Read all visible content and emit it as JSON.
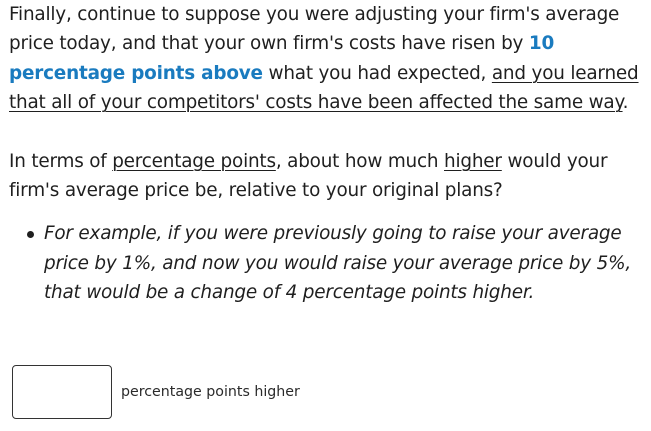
{
  "question": {
    "intro": {
      "part1": "Finally, continue to suppose you were adjusting your firm's average price today, and that your own firm's costs have risen by ",
      "highlight": "10 percentage points above",
      "part2": " what you had expected, ",
      "underlined": "and you learned that all of your competitors' costs have been affected the same way",
      "end": "."
    },
    "prompt": {
      "part1": "In terms of ",
      "underlined1": "percentage points",
      "part2": ", about how much ",
      "underlined2": "higher",
      "part3": " would your firm's average price be, relative to your original plans?"
    },
    "bullets": [
      "For example, if you were previously going to raise your average price by 1%, and now you would raise your average price by 5%, that would be a change of 4 percentage points higher."
    ]
  },
  "answer": {
    "value": "",
    "suffix": "percentage points higher"
  },
  "colors": {
    "highlight": "#1a7bbf",
    "text": "#1f1f1f"
  }
}
